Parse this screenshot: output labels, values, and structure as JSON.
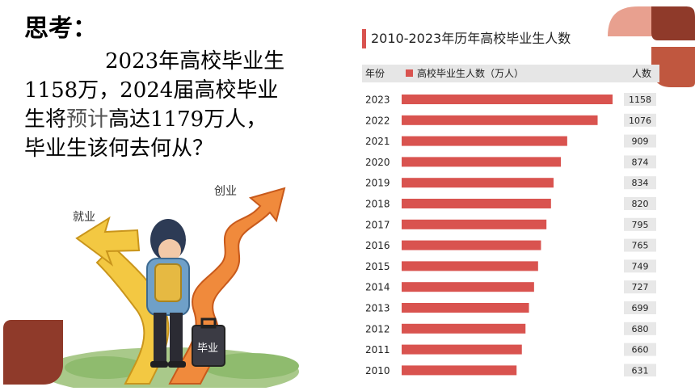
{
  "heading": "思考：",
  "paragraph": {
    "line1": "2023年高校毕业生",
    "line2": "1158万，2024届高校毕业",
    "line3a": "生将",
    "line3b": "预计",
    "line3c": "高达1179万人，",
    "line4": "毕业生该何去何从？"
  },
  "illustration": {
    "label_jiuye": "就业",
    "label_chuangye": "创业",
    "label_biye": "毕业"
  },
  "chart": {
    "title": "2010-2023年历年高校毕业生人数",
    "header_year": "年份",
    "header_legend": "高校毕业生人数（万人）",
    "header_count": "人数"
  },
  "chart_data": {
    "type": "bar",
    "orientation": "horizontal",
    "title": "2010-2023年历年高校毕业生人数",
    "series": [
      {
        "name": "高校毕业生人数（万人）",
        "color": "#d9534f"
      }
    ],
    "categories": [
      "2023",
      "2022",
      "2021",
      "2020",
      "2019",
      "2018",
      "2017",
      "2016",
      "2015",
      "2014",
      "2013",
      "2012",
      "2011",
      "2010"
    ],
    "values": [
      1158,
      1076,
      909,
      874,
      834,
      820,
      795,
      765,
      749,
      727,
      699,
      680,
      660,
      631
    ],
    "xlim": [
      0,
      1158
    ]
  },
  "colors": {
    "bar": "#d9534f",
    "deco_light": "#e8a08f",
    "deco_dark": "#8f3a2a",
    "deco_mid": "#c0573f"
  }
}
